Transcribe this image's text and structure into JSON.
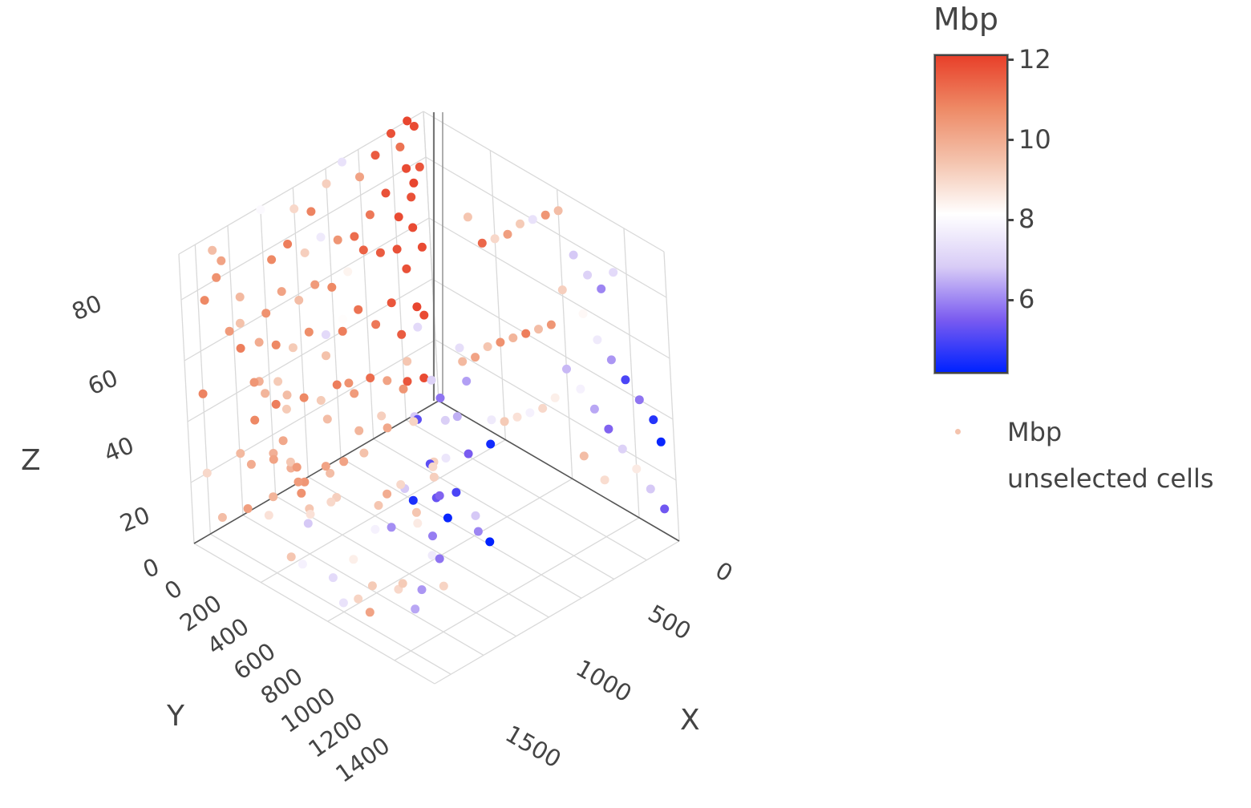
{
  "chart_data": {
    "type": "scatter3d",
    "xlabel": "X",
    "ylabel": "Y",
    "zlabel": "Z",
    "x_ticks": [
      "0",
      "500",
      "1000",
      "1500"
    ],
    "x_tick_values": [
      0,
      500,
      1000,
      1500
    ],
    "y_ticks": [
      "0",
      "200",
      "400",
      "600",
      "800",
      "1000",
      "1200",
      "1400"
    ],
    "y_tick_values": [
      0,
      200,
      400,
      600,
      800,
      1000,
      1200,
      1400
    ],
    "z_ticks": [
      "0",
      "20",
      "40",
      "60",
      "80"
    ],
    "z_tick_values": [
      0,
      20,
      40,
      60,
      80
    ],
    "xlim": [
      0,
      1800
    ],
    "ylim": [
      0,
      1500
    ],
    "zlim": [
      0,
      95
    ],
    "colorbar": {
      "title": "Mbp",
      "ticks": [
        "12",
        "10",
        "8",
        "6"
      ],
      "tick_values": [
        12,
        10,
        8,
        6
      ],
      "range": [
        4.2,
        12.1
      ],
      "colorscale": [
        "#0022ff",
        "#7b5cf0",
        "#d8ccf6",
        "#ffffff",
        "#f4c3ad",
        "#ee8a66",
        "#e8402a"
      ]
    },
    "legend": {
      "position": "right",
      "items": [
        {
          "label": "Mbp",
          "marker_color": "#f4c3ad"
        },
        {
          "label": "unselected cells",
          "marker_color": "#ffffff"
        }
      ]
    },
    "series": [
      {
        "name": "Mbp",
        "points": [
          [
            1700,
            1300,
            85,
            5.8
          ],
          [
            1650,
            1100,
            83,
            6.3
          ],
          [
            1550,
            1350,
            75,
            9.1
          ],
          [
            1600,
            1200,
            72,
            6.9
          ],
          [
            1450,
            1250,
            70,
            5.2
          ],
          [
            1500,
            1050,
            66,
            6.5
          ],
          [
            1700,
            1150,
            62,
            5.5
          ],
          [
            1680,
            1000,
            60,
            4.4
          ],
          [
            1620,
            1300,
            57,
            9.2
          ],
          [
            1550,
            1250,
            57,
            9.0
          ],
          [
            1720,
            1350,
            55,
            5.6
          ],
          [
            1720,
            1250,
            53,
            5.0
          ],
          [
            1400,
            1150,
            51,
            5.2
          ],
          [
            1600,
            1400,
            48,
            9.4
          ],
          [
            1450,
            1300,
            45,
            4.5
          ],
          [
            1500,
            1200,
            44,
            5.3
          ],
          [
            1650,
            1350,
            40,
            5.9
          ],
          [
            1400,
            1400,
            38,
            6.1
          ],
          [
            1600,
            1050,
            36,
            6.8
          ],
          [
            1700,
            1050,
            30,
            4.2
          ],
          [
            1550,
            1000,
            28,
            6.0
          ],
          [
            1450,
            1100,
            33,
            4.3
          ],
          [
            1500,
            1200,
            24,
            5.8
          ],
          [
            1650,
            1300,
            22,
            9.1
          ],
          [
            1400,
            1350,
            18,
            9.3
          ],
          [
            1550,
            1400,
            15,
            6.4
          ],
          [
            1300,
            1150,
            64,
            6.8
          ],
          [
            1250,
            1000,
            70,
            7.0
          ],
          [
            1200,
            1100,
            78,
            9.4
          ],
          [
            1350,
            900,
            80,
            7.3
          ],
          [
            1150,
            1200,
            58,
            10.1
          ],
          [
            1100,
            950,
            82,
            7.2
          ],
          [
            1300,
            1050,
            46,
            9.2
          ],
          [
            1250,
            1300,
            42,
            10.0
          ],
          [
            1200,
            900,
            40,
            7.5
          ],
          [
            1100,
            1100,
            35,
            9.0
          ],
          [
            1050,
            1200,
            30,
            9.4
          ],
          [
            1000,
            1000,
            28,
            6.8
          ],
          [
            1150,
            1050,
            22,
            8.6
          ],
          [
            1300,
            1300,
            12,
            9.0
          ],
          [
            1350,
            1200,
            10,
            6.2
          ],
          [
            1250,
            1050,
            14,
            7.6
          ],
          [
            1100,
            1300,
            8,
            9.3
          ],
          [
            950,
            1150,
            18,
            7.8
          ],
          [
            1200,
            1400,
            5,
            10.2
          ],
          [
            1050,
            1350,
            4,
            9.1
          ],
          [
            900,
            1250,
            10,
            8.5
          ],
          [
            1000,
            1400,
            3,
            7.4
          ],
          [
            900,
            900,
            55,
            10.5
          ],
          [
            850,
            1000,
            48,
            9.2
          ],
          [
            800,
            1100,
            45,
            9.8
          ],
          [
            800,
            1200,
            38,
            10.2
          ],
          [
            700,
            1000,
            32,
            9.5
          ],
          [
            750,
            1250,
            25,
            9.0
          ],
          [
            650,
            1300,
            20,
            8.8
          ],
          [
            600,
            1100,
            18,
            9.2
          ],
          [
            700,
            1400,
            8,
            7.8
          ],
          [
            550,
            1350,
            5,
            9.4
          ],
          [
            800,
            1300,
            3,
            7.2
          ],
          [
            500,
            1200,
            10,
            6.8
          ],
          [
            950,
            1400,
            62,
            9.6
          ],
          [
            1000,
            1300,
            72,
            10.6
          ],
          [
            900,
            1350,
            80,
            9.5
          ],
          [
            850,
            1200,
            86,
            8.2
          ],
          [
            400,
            1400,
            60,
            10.5
          ],
          [
            350,
            1300,
            52,
            9.8
          ],
          [
            300,
            1200,
            44,
            11.0
          ],
          [
            250,
            1100,
            38,
            9.3
          ],
          [
            200,
            1350,
            30,
            9.7
          ],
          [
            150,
            1250,
            22,
            10.0
          ],
          [
            300,
            1400,
            16,
            10.3
          ],
          [
            100,
            1400,
            8,
            9.6
          ],
          [
            200,
            1200,
            5,
            8.8
          ],
          [
            450,
            1150,
            12,
            9.4
          ],
          [
            50,
            1100,
            42,
            9.9
          ],
          [
            100,
            1300,
            66,
            10.4
          ],
          [
            50,
            1400,
            78,
            10.8
          ],
          [
            0,
            1250,
            85,
            10.2
          ],
          [
            150,
            1400,
            88,
            10.6
          ],
          [
            250,
            1350,
            74,
            9.5
          ],
          [
            500,
            1250,
            30,
            10.4
          ],
          [
            400,
            1000,
            20,
            10.2
          ],
          [
            300,
            900,
            12,
            9.6
          ],
          [
            200,
            1000,
            6,
            10.6
          ],
          [
            0,
            1100,
            28,
            10.8
          ],
          [
            0,
            1000,
            14,
            9.9
          ],
          [
            100,
            900,
            4,
            10.5
          ],
          [
            50,
            1200,
            56,
            11.0
          ],
          [
            0,
            1400,
            46,
            10.9
          ],
          [
            600,
            1400,
            46,
            10.1
          ],
          [
            700,
            1400,
            35,
            10.4
          ],
          [
            500,
            1400,
            25,
            9.8
          ],
          [
            0,
            1300,
            90,
            9.6
          ],
          [
            0,
            1150,
            70,
            9.7
          ],
          [
            0,
            1050,
            52,
            10.0
          ],
          [
            0,
            950,
            36,
            9.3
          ],
          [
            0,
            1400,
            20,
            9.0
          ],
          [
            0,
            900,
            6,
            9.9
          ],
          [
            0,
            1000,
            94,
            8.0
          ],
          [
            0,
            800,
            88,
            9.0
          ],
          [
            0,
            700,
            84,
            10.9
          ],
          [
            0,
            600,
            90,
            9.2
          ],
          [
            0,
            500,
            94,
            7.4
          ],
          [
            0,
            400,
            86,
            10.2
          ],
          [
            0,
            300,
            90,
            11.6
          ],
          [
            0,
            200,
            94,
            11.8
          ],
          [
            0,
            150,
            88,
            11.2
          ],
          [
            0,
            100,
            95,
            12.0
          ],
          [
            0,
            60,
            92,
            11.9
          ],
          [
            0,
            950,
            76,
            10.8
          ],
          [
            0,
            850,
            78,
            11.0
          ],
          [
            0,
            750,
            72,
            9.2
          ],
          [
            0,
            650,
            74,
            7.6
          ],
          [
            0,
            550,
            70,
            10.5
          ],
          [
            0,
            450,
            68,
            11.3
          ],
          [
            0,
            350,
            72,
            11.1
          ],
          [
            0,
            250,
            76,
            11.8
          ],
          [
            0,
            120,
            80,
            11.9
          ],
          [
            0,
            80,
            74,
            12.0
          ],
          [
            0,
            40,
            78,
            11.7
          ],
          [
            0,
            100,
            70,
            11.8
          ],
          [
            0,
            180,
            66,
            11.9
          ],
          [
            0,
            1000,
            60,
            10.6
          ],
          [
            0,
            900,
            64,
            10.2
          ],
          [
            0,
            800,
            58,
            9.6
          ],
          [
            0,
            700,
            60,
            10.4
          ],
          [
            0,
            600,
            56,
            10.8
          ],
          [
            0,
            500,
            58,
            8.4
          ],
          [
            0,
            400,
            62,
            11.5
          ],
          [
            0,
            300,
            58,
            11.6
          ],
          [
            0,
            200,
            56,
            11.8
          ],
          [
            0,
            100,
            60,
            11.9
          ],
          [
            0,
            50,
            52,
            11.9
          ],
          [
            0,
            150,
            48,
            11.8
          ],
          [
            0,
            950,
            48,
            10.8
          ],
          [
            0,
            850,
            44,
            9.3
          ],
          [
            0,
            750,
            46,
            10.7
          ],
          [
            0,
            650,
            42,
            7.2
          ],
          [
            0,
            550,
            40,
            11.0
          ],
          [
            0,
            450,
            44,
            11.2
          ],
          [
            0,
            350,
            36,
            11.1
          ],
          [
            0,
            250,
            40,
            11.7
          ],
          [
            0,
            100,
            34,
            12.0
          ],
          [
            0,
            60,
            30,
            11.9
          ],
          [
            0,
            200,
            28,
            11.6
          ],
          [
            0,
            900,
            30,
            9.6
          ],
          [
            0,
            800,
            26,
            10.8
          ],
          [
            0,
            700,
            22,
            9.3
          ],
          [
            0,
            600,
            24,
            11.0
          ],
          [
            0,
            500,
            18,
            10.4
          ],
          [
            0,
            400,
            20,
            11.3
          ],
          [
            0,
            300,
            16,
            10.2
          ],
          [
            0,
            180,
            12,
            11.7
          ],
          [
            0,
            80,
            10,
            11.9
          ],
          [
            0,
            1000,
            12,
            10.2
          ],
          [
            0,
            900,
            8,
            9.4
          ],
          [
            1000,
            0,
            88,
            9.6
          ],
          [
            900,
            0,
            84,
            10.5
          ],
          [
            800,
            0,
            80,
            7.4
          ],
          [
            700,
            0,
            76,
            9.3
          ],
          [
            1100,
            0,
            76,
            6.8
          ],
          [
            1200,
            0,
            72,
            7.0
          ],
          [
            1300,
            0,
            70,
            6.0
          ],
          [
            1400,
            0,
            78,
            7.2
          ],
          [
            600,
            0,
            70,
            10.3
          ],
          [
            500,
            0,
            66,
            9.0
          ],
          [
            400,
            0,
            62,
            11.4
          ],
          [
            300,
            0,
            68,
            9.4
          ],
          [
            1000,
            0,
            62,
            9.2
          ],
          [
            1150,
            0,
            58,
            8.3
          ],
          [
            1250,
            0,
            52,
            7.6
          ],
          [
            1350,
            0,
            48,
            6.2
          ],
          [
            1450,
            0,
            44,
            5.0
          ],
          [
            1550,
            0,
            40,
            5.8
          ],
          [
            1650,
            0,
            36,
            4.6
          ],
          [
            1700,
            0,
            30,
            4.3
          ],
          [
            900,
            0,
            48,
            10.5
          ],
          [
            800,
            0,
            44,
            9.6
          ],
          [
            700,
            0,
            40,
            11.0
          ],
          [
            600,
            0,
            36,
            9.8
          ],
          [
            500,
            0,
            32,
            10.6
          ],
          [
            400,
            0,
            28,
            9.4
          ],
          [
            300,
            0,
            22,
            10.2
          ],
          [
            200,
            0,
            18,
            9.7
          ],
          [
            1000,
            0,
            36,
            6.6
          ],
          [
            1100,
            0,
            32,
            7.8
          ],
          [
            1200,
            0,
            28,
            6.4
          ],
          [
            1300,
            0,
            24,
            5.6
          ],
          [
            1400,
            0,
            20,
            7.0
          ],
          [
            1500,
            0,
            16,
            8.6
          ],
          [
            1600,
            0,
            12,
            6.8
          ],
          [
            1700,
            0,
            8,
            5.4
          ],
          [
            900,
            0,
            24,
            8.5
          ],
          [
            800,
            0,
            18,
            9.0
          ],
          [
            700,
            0,
            14,
            7.8
          ],
          [
            600,
            0,
            10,
            8.8
          ],
          [
            500,
            0,
            6,
            9.3
          ],
          [
            400,
            0,
            4,
            7.6
          ],
          [
            1100,
            0,
            10,
            9.6
          ],
          [
            1250,
            0,
            6,
            8.9
          ]
        ]
      },
      {
        "name": "unselected cells",
        "points": []
      }
    ]
  }
}
